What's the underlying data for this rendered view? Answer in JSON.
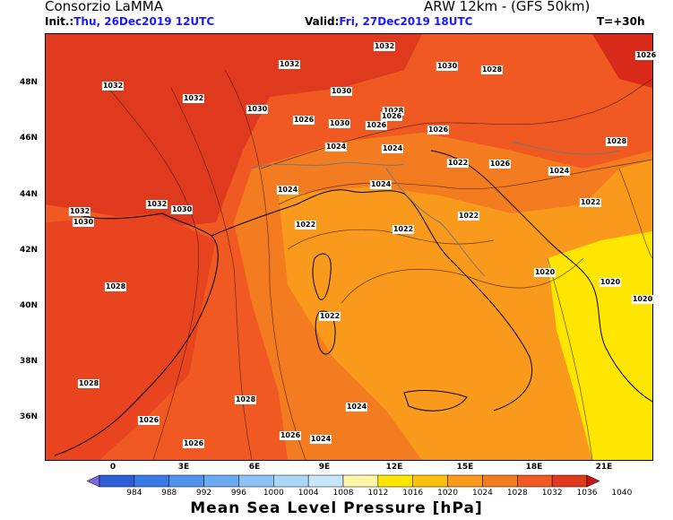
{
  "header": {
    "org": "Consorzio LaMMA",
    "model": "ARW 12km - (GFS 50km)",
    "init_label": "Init.:",
    "init_value": "Thu, 26Dec2019 12UTC",
    "valid_label": "Valid:",
    "valid_value": "Fri, 27Dec2019 18UTC",
    "lead": "T=+30h"
  },
  "map": {
    "lat_ticks": [
      "48N",
      "46N",
      "44N",
      "42N",
      "40N",
      "38N",
      "36N"
    ],
    "lon_ticks": [
      "0",
      "3E",
      "6E",
      "9E",
      "12E",
      "15E",
      "18E",
      "21E"
    ],
    "isobar_labels": [
      "1032",
      "1032",
      "1030",
      "1028",
      "1026",
      "1032",
      "1032",
      "1030",
      "1030",
      "1028",
      "1026",
      "1030",
      "1026",
      "1024",
      "1026",
      "1024",
      "1028",
      "1026",
      "1022",
      "1032",
      "1030",
      "1032",
      "1030",
      "1024",
      "1024",
      "1022",
      "1022",
      "1024",
      "1022",
      "1026",
      "1022",
      "1028",
      "1020",
      "1020",
      "1020",
      "1022",
      "1028",
      "1028",
      "1026",
      "1026",
      "1026",
      "1024",
      "1024"
    ],
    "colors": {
      "sea_low": "#ffe600",
      "orange": "#f99a1c",
      "dark_orange": "#f47c20",
      "red_orange": "#f05a22",
      "red": "#e03a1e"
    }
  },
  "colorbar": {
    "title": "Mean Sea Level Pressure [hPa]",
    "levels": [
      "984",
      "988",
      "992",
      "996",
      "1000",
      "1004",
      "1008",
      "1012",
      "1016",
      "1020",
      "1024",
      "1028",
      "1032",
      "1036",
      "1040"
    ],
    "colors": [
      "#7b68d8",
      "#2b5ed8",
      "#3a7ae6",
      "#4f93ef",
      "#6aaaf3",
      "#8cc2f6",
      "#aad6f8",
      "#c6e6fa",
      "#fff6a8",
      "#ffe600",
      "#fbc00c",
      "#f99a1c",
      "#f47c20",
      "#f05a22",
      "#e03a1e",
      "#c81414"
    ]
  }
}
